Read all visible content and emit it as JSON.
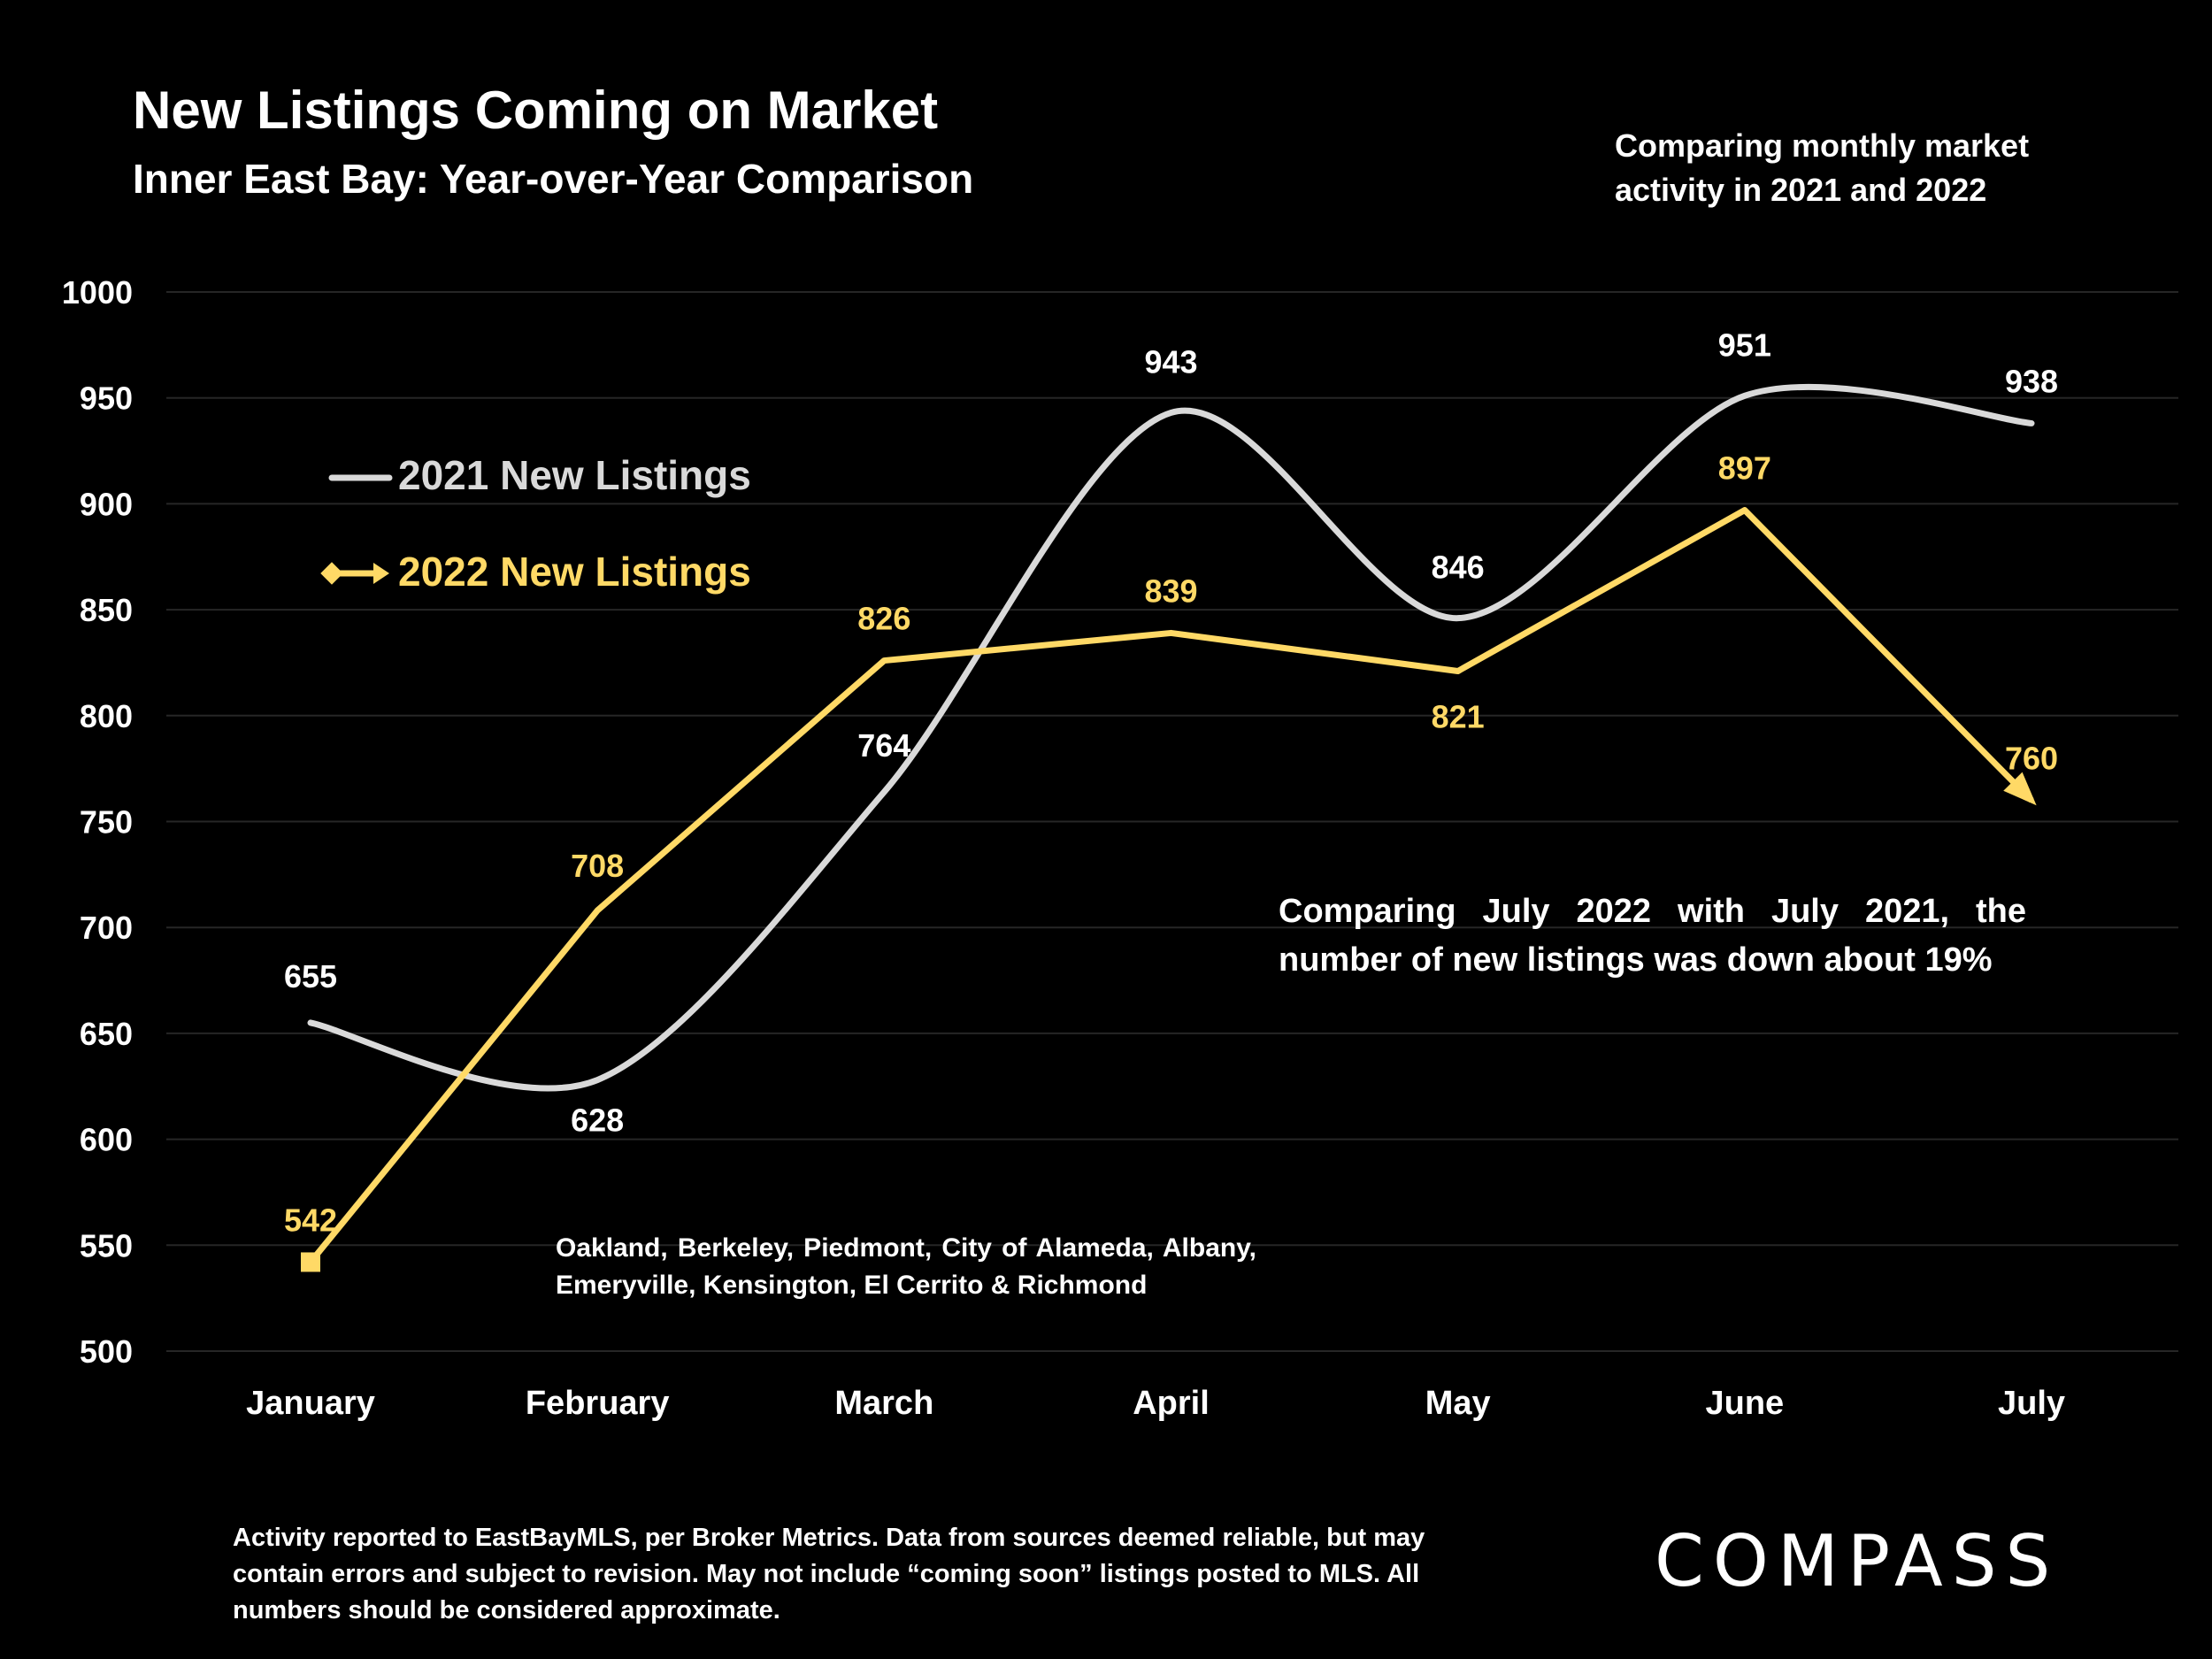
{
  "header": {
    "title": "New Listings Coming on Market",
    "subtitle": "Inner East Bay: Year-over-Year Comparison",
    "top_note": "Comparing monthly market activity in 2021 and 2022"
  },
  "annotations": {
    "callout": "Comparing July 2022 with July 2021, the number of new listings was down about 19%",
    "areas": "Oakland, Berkeley, Piedmont, City of Alameda, Albany, Emeryville, Kensington, El Cerrito & Richmond"
  },
  "footer": {
    "note": "Activity reported to EastBayMLS, per Broker Metrics. Data from sources deemed reliable, but may contain errors and subject to revision. May not include “coming soon” listings posted to MLS. All numbers should be considered approximate.",
    "logo_text": "COMPASS"
  },
  "colors": {
    "background": "#000000",
    "series_2021": "#D9D9D9",
    "series_2022": "#FFD966",
    "gridline": "#262626",
    "text": "#FFFFFF"
  },
  "chart_data": {
    "type": "line",
    "categories": [
      "January",
      "February",
      "March",
      "April",
      "May",
      "June",
      "July"
    ],
    "yticks": [
      500,
      550,
      600,
      650,
      700,
      750,
      800,
      850,
      900,
      950,
      1000
    ],
    "ylim": [
      500,
      1000
    ],
    "grid": true,
    "legend_position": "upper-left",
    "series": [
      {
        "name": "2021 New Listings",
        "values": [
          655,
          628,
          764,
          943,
          846,
          951,
          938
        ],
        "smooth": true
      },
      {
        "name": "2022 New Listings",
        "values": [
          542,
          708,
          826,
          839,
          821,
          897,
          760
        ],
        "smooth": false
      }
    ]
  }
}
